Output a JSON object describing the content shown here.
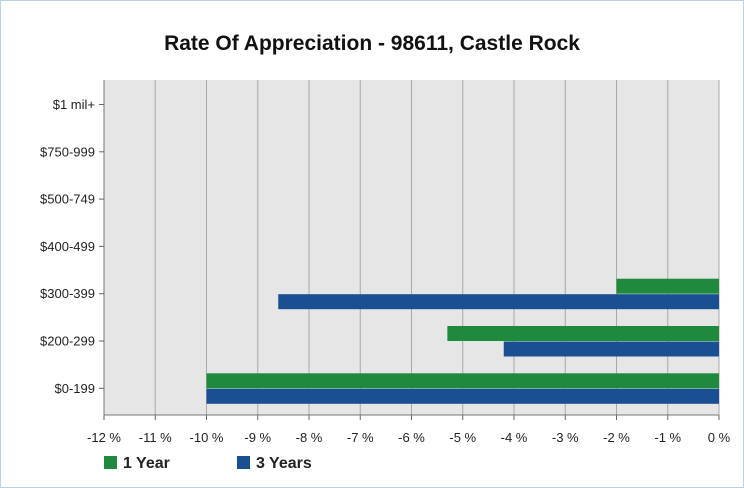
{
  "chart_data": {
    "type": "bar",
    "orientation": "horizontal",
    "title": "Rate Of Appreciation - 98611, Castle Rock",
    "xlabel": "",
    "ylabel": "",
    "categories": [
      "$1 mil+",
      "$750-999",
      "$500-749",
      "$400-499",
      "$300-399",
      "$200-299",
      "$0-199"
    ],
    "series": [
      {
        "name": "1 Year",
        "color": "#1f8a3e",
        "values": [
          null,
          null,
          null,
          null,
          -2.0,
          -5.3,
          -10.0
        ]
      },
      {
        "name": "3 Years",
        "color": "#1a4f91",
        "values": [
          null,
          null,
          null,
          null,
          -8.6,
          -4.2,
          -10.0
        ]
      }
    ],
    "xlim": [
      -12,
      0
    ],
    "xticks": [
      "-12 %",
      "-11 %",
      "-10 %",
      "-9 %",
      "-8 %",
      "-7 %",
      "-6 %",
      "-5 %",
      "-4 %",
      "-3 %",
      "-2 %",
      "-1 %",
      "0 %"
    ],
    "grid": true,
    "legend": "bottom-left",
    "plot_background": "#e6e6e6",
    "grid_color": "#a8a8a8"
  }
}
